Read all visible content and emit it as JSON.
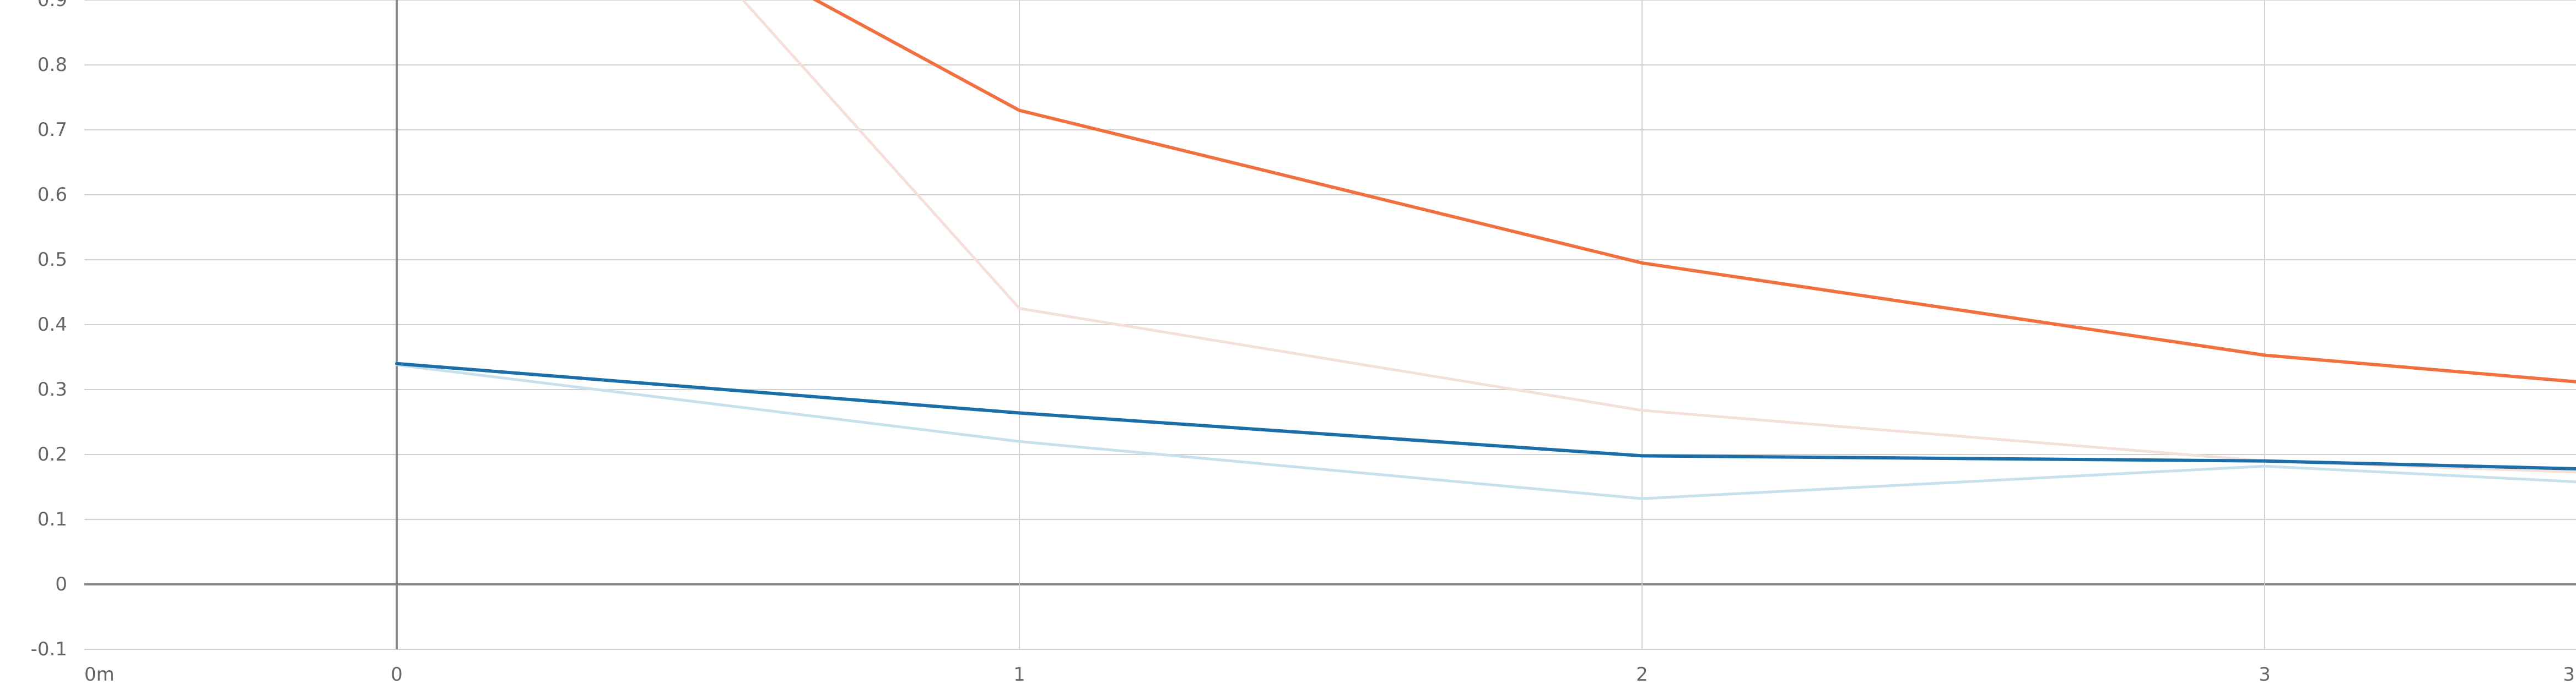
{
  "chart_data": {
    "type": "line",
    "title": "",
    "xlabel": "",
    "ylabel": "",
    "x": [
      0,
      1,
      2,
      3,
      3.5
    ],
    "xlim": [
      -0.5,
      3.5
    ],
    "ylim": [
      -0.1,
      0.9
    ],
    "x_ticks": [
      {
        "value": -0.5,
        "label": "0m"
      },
      {
        "value": 0,
        "label": "0"
      },
      {
        "value": 1,
        "label": "1"
      },
      {
        "value": 2,
        "label": "2"
      },
      {
        "value": 3,
        "label": "3"
      },
      {
        "value": 3.5,
        "label": "3"
      }
    ],
    "y_ticks": [
      -0.1,
      0,
      0.1,
      0.2,
      0.3,
      0.4,
      0.5,
      0.6,
      0.7,
      0.8,
      0.9
    ],
    "y_tick_labels": [
      "-0.1",
      "0",
      "0.1",
      "0.2",
      "0.3",
      "0.4",
      "0.5",
      "0.6",
      "0.7",
      "0.8",
      "0.9"
    ],
    "grid": true,
    "series": [
      {
        "color": "#f4e0d9",
        "note": "",
        "points": [
          {
            "x": 0.5,
            "y": 0.96
          },
          {
            "x": 1,
            "y": 0.425
          },
          {
            "x": 2,
            "y": 0.268
          },
          {
            "x": 3,
            "y": 0.19
          },
          {
            "x": 3.5,
            "y": 0.173
          }
        ]
      },
      {
        "color": "#f07040",
        "points": [
          {
            "x": 0.5,
            "y": 0.99
          },
          {
            "x": 1,
            "y": 0.73
          },
          {
            "x": 2,
            "y": 0.495
          },
          {
            "x": 3,
            "y": 0.353
          },
          {
            "x": 3.5,
            "y": 0.312
          }
        ]
      },
      {
        "color": "#c8e0ee",
        "points": [
          {
            "x": 0,
            "y": 0.338
          },
          {
            "x": 1,
            "y": 0.22
          },
          {
            "x": 2,
            "y": 0.132
          },
          {
            "x": 3,
            "y": 0.182
          },
          {
            "x": 3.5,
            "y": 0.158
          }
        ]
      },
      {
        "color": "#1b6ea8",
        "points": [
          {
            "x": 0,
            "y": 0.34
          },
          {
            "x": 1,
            "y": 0.264
          },
          {
            "x": 2,
            "y": 0.198
          },
          {
            "x": 3,
            "y": 0.19
          },
          {
            "x": 3.5,
            "y": 0.178
          }
        ]
      }
    ]
  }
}
